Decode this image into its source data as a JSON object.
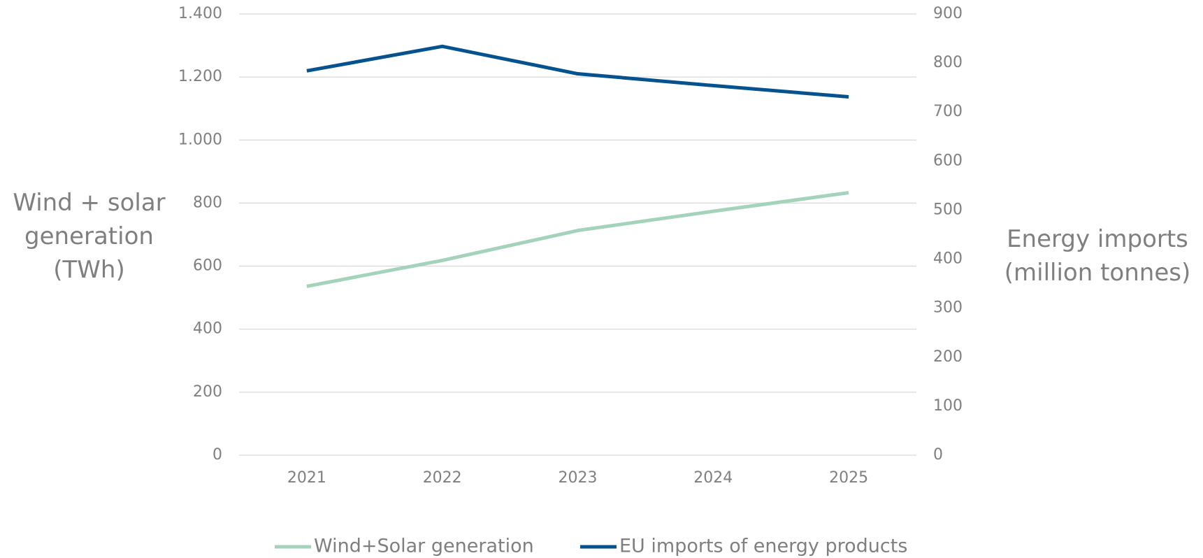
{
  "chart_data": {
    "type": "line",
    "y_label": "Wind + solar generation (TWh)",
    "y2_label": "Energy imports (million tonnes)",
    "categories": [
      "2021",
      "2022",
      "2023",
      "2024",
      "2025"
    ],
    "series": [
      {
        "name": "Wind+Solar generation",
        "color": "#a3d4b9",
        "values": [
          536,
          618,
          713,
          774,
          833
        ]
      },
      {
        "name": "EU imports of energy products",
        "color": "#04538f",
        "axis": "y2",
        "values": [
          784,
          834,
          778,
          754,
          731
        ]
      }
    ],
    "ylim": [
      0,
      1400
    ],
    "yticks": [
      0,
      200,
      400,
      600,
      800,
      {
        "value": 1000,
        "label": "1.000"
      },
      {
        "value": 1200,
        "label": "1.200"
      },
      {
        "value": 1400,
        "label": "1.400"
      }
    ],
    "y2lim": [
      0,
      900
    ],
    "y2ticks": [
      0,
      100,
      200,
      300,
      400,
      500,
      600,
      700,
      800,
      900
    ],
    "grid": true,
    "legend": "bottom"
  }
}
